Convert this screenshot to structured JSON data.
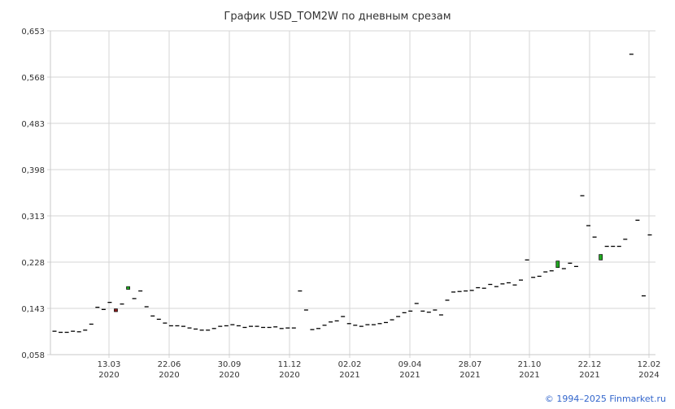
{
  "chart_data": {
    "type": "candlestick",
    "title": "График USD_TOM2W по дневным срезам",
    "ylim": [
      0.058,
      0.653
    ],
    "y_ticks": [
      "0,058",
      "0,143",
      "0,228",
      "0,313",
      "0,398",
      "0,483",
      "0,568",
      "0,653"
    ],
    "x_ticks": [
      {
        "date": "13.03",
        "year": "2020"
      },
      {
        "date": "22.06",
        "year": "2020"
      },
      {
        "date": "30.09",
        "year": "2020"
      },
      {
        "date": "11.12",
        "year": "2020"
      },
      {
        "date": "02.02",
        "year": "2021"
      },
      {
        "date": "09.04",
        "year": "2021"
      },
      {
        "date": "28.07",
        "year": "2021"
      },
      {
        "date": "21.10",
        "year": "2021"
      },
      {
        "date": "22.12",
        "year": "2021"
      },
      {
        "date": "12.02",
        "year": "2024"
      }
    ],
    "candles": [
      {
        "o": 0.101,
        "c": 0.101
      },
      {
        "o": 0.099,
        "c": 0.099
      },
      {
        "o": 0.099,
        "c": 0.099
      },
      {
        "o": 0.101,
        "c": 0.101
      },
      {
        "o": 0.1,
        "c": 0.1
      },
      {
        "o": 0.103,
        "c": 0.103
      },
      {
        "o": 0.114,
        "c": 0.114
      },
      {
        "o": 0.145,
        "c": 0.145
      },
      {
        "o": 0.141,
        "c": 0.141
      },
      {
        "o": 0.154,
        "c": 0.154
      },
      {
        "o": 0.142,
        "c": 0.137
      },
      {
        "o": 0.151,
        "c": 0.151
      },
      {
        "o": 0.178,
        "c": 0.183
      },
      {
        "o": 0.161,
        "c": 0.161
      },
      {
        "o": 0.175,
        "c": 0.175
      },
      {
        "o": 0.146,
        "c": 0.146
      },
      {
        "o": 0.129,
        "c": 0.129
      },
      {
        "o": 0.123,
        "c": 0.123
      },
      {
        "o": 0.116,
        "c": 0.116
      },
      {
        "o": 0.111,
        "c": 0.111
      },
      {
        "o": 0.111,
        "c": 0.111
      },
      {
        "o": 0.11,
        "c": 0.11
      },
      {
        "o": 0.107,
        "c": 0.107
      },
      {
        "o": 0.105,
        "c": 0.105
      },
      {
        "o": 0.103,
        "c": 0.103
      },
      {
        "o": 0.103,
        "c": 0.103
      },
      {
        "o": 0.106,
        "c": 0.106
      },
      {
        "o": 0.11,
        "c": 0.11
      },
      {
        "o": 0.111,
        "c": 0.111
      },
      {
        "o": 0.113,
        "c": 0.113
      },
      {
        "o": 0.111,
        "c": 0.111
      },
      {
        "o": 0.108,
        "c": 0.108
      },
      {
        "o": 0.11,
        "c": 0.11
      },
      {
        "o": 0.11,
        "c": 0.11
      },
      {
        "o": 0.108,
        "c": 0.108
      },
      {
        "o": 0.108,
        "c": 0.108
      },
      {
        "o": 0.109,
        "c": 0.109
      },
      {
        "o": 0.106,
        "c": 0.106
      },
      {
        "o": 0.107,
        "c": 0.107
      },
      {
        "o": 0.107,
        "c": 0.107
      },
      {
        "o": 0.175,
        "c": 0.175
      },
      {
        "o": 0.14,
        "c": 0.14
      },
      {
        "o": 0.104,
        "c": 0.104
      },
      {
        "o": 0.106,
        "c": 0.106
      },
      {
        "o": 0.112,
        "c": 0.112
      },
      {
        "o": 0.118,
        "c": 0.118
      },
      {
        "o": 0.12,
        "c": 0.12
      },
      {
        "o": 0.128,
        "c": 0.128
      },
      {
        "o": 0.115,
        "c": 0.115
      },
      {
        "o": 0.112,
        "c": 0.112
      },
      {
        "o": 0.11,
        "c": 0.11
      },
      {
        "o": 0.113,
        "c": 0.113
      },
      {
        "o": 0.113,
        "c": 0.113
      },
      {
        "o": 0.115,
        "c": 0.115
      },
      {
        "o": 0.117,
        "c": 0.117
      },
      {
        "o": 0.122,
        "c": 0.122
      },
      {
        "o": 0.128,
        "c": 0.128
      },
      {
        "o": 0.135,
        "c": 0.135
      },
      {
        "o": 0.138,
        "c": 0.138
      },
      {
        "o": 0.152,
        "c": 0.152
      },
      {
        "o": 0.138,
        "c": 0.138
      },
      {
        "o": 0.136,
        "c": 0.136
      },
      {
        "o": 0.14,
        "c": 0.14
      },
      {
        "o": 0.131,
        "c": 0.131
      },
      {
        "o": 0.158,
        "c": 0.158
      },
      {
        "o": 0.173,
        "c": 0.173
      },
      {
        "o": 0.174,
        "c": 0.174
      },
      {
        "o": 0.175,
        "c": 0.175
      },
      {
        "o": 0.176,
        "c": 0.176
      },
      {
        "o": 0.181,
        "c": 0.181
      },
      {
        "o": 0.18,
        "c": 0.18
      },
      {
        "o": 0.187,
        "c": 0.187
      },
      {
        "o": 0.183,
        "c": 0.183
      },
      {
        "o": 0.188,
        "c": 0.188
      },
      {
        "o": 0.19,
        "c": 0.19
      },
      {
        "o": 0.186,
        "c": 0.186
      },
      {
        "o": 0.195,
        "c": 0.195
      },
      {
        "o": 0.232,
        "c": 0.232
      },
      {
        "o": 0.2,
        "c": 0.2
      },
      {
        "o": 0.202,
        "c": 0.202
      },
      {
        "o": 0.21,
        "c": 0.21
      },
      {
        "o": 0.212,
        "c": 0.212
      },
      {
        "o": 0.218,
        "c": 0.23
      },
      {
        "o": 0.216,
        "c": 0.216
      },
      {
        "o": 0.226,
        "c": 0.226
      },
      {
        "o": 0.22,
        "c": 0.22
      },
      {
        "o": 0.35,
        "c": 0.35
      },
      {
        "o": 0.295,
        "c": 0.295
      },
      {
        "o": 0.274,
        "c": 0.274
      },
      {
        "o": 0.232,
        "c": 0.242
      },
      {
        "o": 0.257,
        "c": 0.257
      },
      {
        "o": 0.257,
        "c": 0.257
      },
      {
        "o": 0.257,
        "c": 0.257
      },
      {
        "o": 0.27,
        "c": 0.27
      },
      {
        "o": 0.61,
        "c": 0.61
      },
      {
        "o": 0.305,
        "c": 0.305
      },
      {
        "o": 0.166,
        "c": 0.166
      },
      {
        "o": 0.278,
        "c": 0.278
      }
    ],
    "colors": {
      "up": "#22aa22",
      "down": "#8b1a1a",
      "flat": "#000000",
      "grid": "#d6d6d6",
      "text": "#333333",
      "credit": "#3366cc"
    }
  },
  "footer": {
    "credit": "© 1994–2025 Finmarket.ru"
  }
}
